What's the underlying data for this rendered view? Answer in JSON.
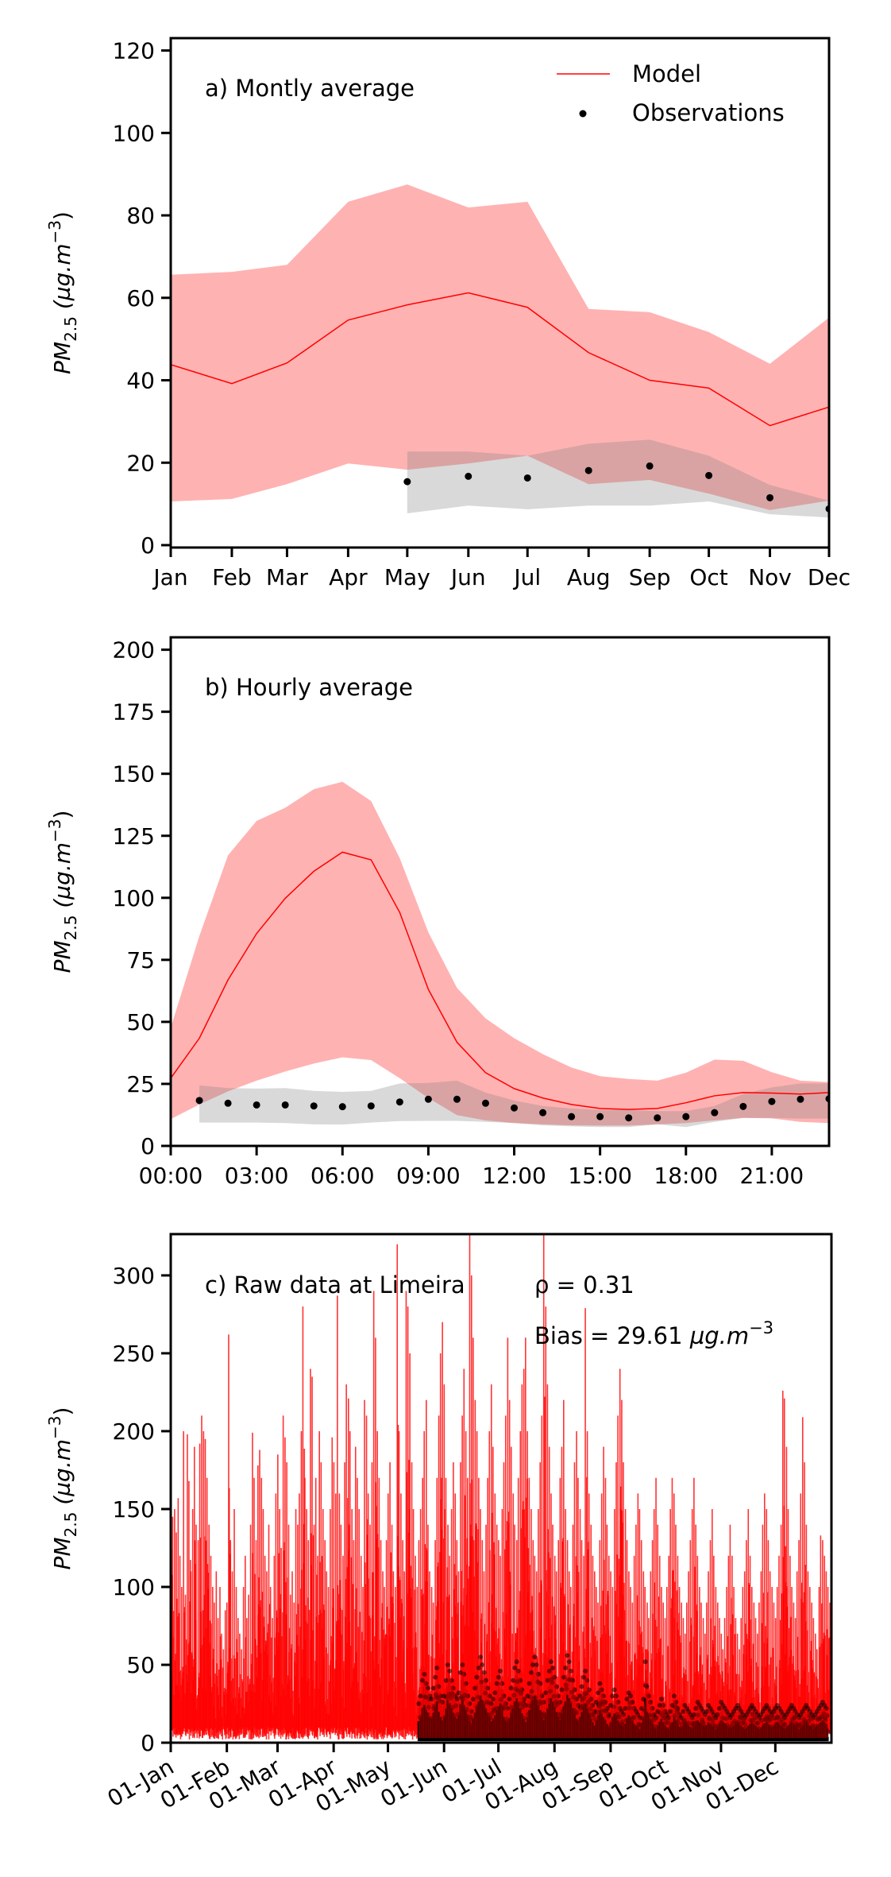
{
  "chart_data": [
    {
      "type": "line",
      "panel": "a",
      "title": "a) Montly average",
      "xlabel": "",
      "ylabel": "PM2.5 (µg.m^-3)",
      "ylabel_parts": {
        "main": "PM",
        "sub": "2.5",
        "unit_open": " (µg.m",
        "sup": "−3",
        "unit_close": ")"
      },
      "ylim": [
        0,
        123
      ],
      "yticks": [
        0,
        20,
        40,
        60,
        80,
        100,
        120
      ],
      "x_unit": "day_of_year",
      "xlim": [
        0,
        334
      ],
      "categories": [
        "Jan",
        "Feb",
        "Mar",
        "Apr",
        "May",
        "Jun",
        "Jul",
        "Aug",
        "Sep",
        "Oct",
        "Nov",
        "Dec"
      ],
      "x": [
        0,
        31,
        59,
        90,
        120,
        151,
        181,
        212,
        243,
        273,
        304,
        334
      ],
      "legend": {
        "placement": "top-right",
        "entries": [
          {
            "label": "Model",
            "marker": "line",
            "color": "#ff0000"
          },
          {
            "label": "Observations",
            "marker": "dot",
            "color": "#000000"
          }
        ]
      },
      "series": [
        {
          "name": "Model",
          "kind": "line",
          "color": "#ff0000",
          "values": [
            43.8,
            39.2,
            44.2,
            54.6,
            58.3,
            61.2,
            57.7,
            46.7,
            40.0,
            38.1,
            29.0,
            33.5
          ]
        },
        {
          "name": "Model range",
          "kind": "band",
          "color": "#ff0000",
          "opacity": 0.3,
          "upper": [
            65.6,
            66.3,
            68.0,
            83.3,
            87.5,
            81.9,
            83.3,
            57.3,
            56.5,
            51.7,
            44.0,
            55.2
          ],
          "lower": [
            10.6,
            11.2,
            14.8,
            19.8,
            18.3,
            19.8,
            21.7,
            14.8,
            15.8,
            12.5,
            8.5,
            10.8
          ]
        },
        {
          "name": "Observations",
          "kind": "scatter",
          "color": "#000000",
          "start_index": 4,
          "values": [
            15.4,
            16.7,
            16.3,
            18.1,
            19.2,
            16.9,
            11.5,
            8.8
          ]
        },
        {
          "name": "Observation range",
          "kind": "band",
          "color": "#808080",
          "opacity": 0.3,
          "start_index": 4,
          "upper": [
            22.7,
            22.7,
            21.7,
            24.6,
            25.6,
            21.7,
            14.6,
            10.8
          ],
          "lower": [
            7.7,
            9.6,
            8.7,
            9.6,
            9.6,
            10.6,
            7.5,
            6.7
          ]
        }
      ]
    },
    {
      "type": "line",
      "panel": "b",
      "title": "b) Hourly average",
      "xlabel": "",
      "ylabel": "PM2.5 (µg.m^-3)",
      "ylabel_parts": {
        "main": "PM",
        "sub": "2.5",
        "unit_open": " (µg.m",
        "sup": "−3",
        "unit_close": ")"
      },
      "ylim": [
        0,
        205
      ],
      "yticks": [
        0,
        25,
        50,
        75,
        100,
        125,
        150,
        175,
        200
      ],
      "xlim": [
        0,
        23
      ],
      "xtick_values": [
        0,
        3,
        6,
        9,
        12,
        15,
        18,
        21
      ],
      "xtick_labels": [
        "00:00",
        "03:00",
        "06:00",
        "09:00",
        "12:00",
        "15:00",
        "18:00",
        "21:00"
      ],
      "x": [
        0,
        1,
        2,
        3,
        4,
        5,
        6,
        7,
        8,
        9,
        10,
        11,
        12,
        13,
        14,
        15,
        16,
        17,
        18,
        19,
        20,
        21,
        22,
        23
      ],
      "series": [
        {
          "name": "Model",
          "kind": "line",
          "color": "#ff0000",
          "values": [
            27.3,
            43.4,
            66.9,
            85.6,
            99.8,
            110.7,
            118.4,
            115.3,
            94.1,
            63.1,
            41.8,
            29.5,
            23.1,
            19.3,
            16.7,
            15.1,
            14.7,
            15.1,
            17.4,
            20.2,
            21.5,
            21.3,
            20.9,
            21.5
          ]
        },
        {
          "name": "Model range",
          "kind": "band",
          "color": "#ff0000",
          "opacity": 0.3,
          "upper": [
            47.7,
            84.6,
            117.1,
            131.0,
            136.3,
            143.8,
            146.8,
            139.0,
            116.0,
            86.1,
            63.7,
            51.4,
            43.4,
            37.0,
            31.6,
            28.1,
            27.0,
            26.3,
            29.5,
            34.8,
            34.3,
            29.7,
            26.3,
            25.7
          ],
          "lower": [
            10.8,
            16.7,
            22.0,
            26.3,
            30.0,
            33.2,
            35.7,
            34.6,
            27.3,
            19.3,
            12.4,
            10.3,
            9.2,
            8.7,
            8.3,
            8.2,
            8.2,
            8.7,
            9.2,
            10.3,
            11.3,
            11.1,
            9.7,
            9.2
          ]
        },
        {
          "name": "Observations",
          "kind": "scatter",
          "color": "#000000",
          "start_index": 1,
          "values": [
            18.3,
            17.2,
            16.5,
            16.5,
            16.1,
            15.8,
            16.1,
            17.7,
            18.8,
            18.8,
            17.2,
            15.3,
            13.4,
            11.8,
            11.8,
            11.3,
            11.3,
            11.8,
            13.4,
            15.9,
            17.9,
            18.8,
            19.0
          ]
        },
        {
          "name": "Observation range",
          "kind": "band",
          "color": "#808080",
          "opacity": 0.3,
          "start_index": 1,
          "upper": [
            24.4,
            23.3,
            23.1,
            23.3,
            22.2,
            21.8,
            22.2,
            25.2,
            25.4,
            26.3,
            21.5,
            18.3,
            16.1,
            15.1,
            14.5,
            14.5,
            14.0,
            14.0,
            16.1,
            20.9,
            23.6,
            25.2,
            25.2
          ],
          "lower": [
            9.4,
            9.4,
            9.4,
            9.2,
            8.7,
            8.6,
            9.4,
            10.0,
            10.1,
            10.1,
            9.7,
            9.2,
            8.3,
            7.9,
            7.6,
            7.6,
            8.7,
            7.6,
            9.7,
            11.3,
            11.3,
            11.0,
            11.0
          ]
        }
      ]
    },
    {
      "type": "line",
      "panel": "c",
      "title": "c) Raw data at Limeira",
      "annotations": [
        "ρ = 0.31",
        "Bias = 29.61 µg.m^-3"
      ],
      "annotation_parts": {
        "rho": "ρ = 0.31",
        "bias_prefix": "Bias = 29.61 ",
        "bias_unit": "µg.m",
        "bias_sup": "−3"
      },
      "xlabel": "",
      "ylabel": "PM2.5 (µg.m^-3)",
      "ylabel_parts": {
        "main": "PM",
        "sub": "2.5",
        "unit_open": " (µg.m",
        "sup": "−3",
        "unit_close": ")"
      },
      "ylim": [
        0,
        326
      ],
      "yticks": [
        0,
        50,
        100,
        150,
        200,
        250,
        300
      ],
      "x_unit": "day_of_year",
      "xlim": [
        0,
        365
      ],
      "xtick_values": [
        0,
        31,
        59,
        90,
        120,
        151,
        181,
        212,
        243,
        273,
        304,
        334
      ],
      "xtick_labels": [
        "01-Jan",
        "01-Feb",
        "01-Mar",
        "01-Apr",
        "01-May",
        "01-Jun",
        "01-Jul",
        "01-Aug",
        "01-Sep",
        "01-Oct",
        "01-Nov",
        "01-Dec"
      ],
      "series": [
        {
          "name": "Model (hourly, shown as daily max/min)",
          "kind": "spikes",
          "color": "#ff0000",
          "daily_max": [
            178,
            145,
            150,
            135,
            157,
            120,
            100,
            200,
            95,
            198,
            168,
            110,
            150,
            190,
            140,
            130,
            192,
            210,
            200,
            195,
            170,
            140,
            120,
            100,
            90,
            110,
            80,
            100,
            70,
            60,
            85,
            90,
            262,
            130,
            110,
            150,
            100,
            80,
            70,
            60,
            100,
            120,
            80,
            95,
            140,
            199,
            170,
            130,
            178,
            188,
            170,
            150,
            120,
            110,
            140,
            100,
            80,
            120,
            160,
            185,
            150,
            125,
            210,
            196,
            180,
            140,
            95,
            110,
            90,
            150,
            140,
            160,
            200,
            280,
            170,
            150,
            130,
            240,
            235,
            140,
            170,
            120,
            200,
            180,
            150,
            130,
            110,
            100,
            150,
            196,
            180,
            160,
            287,
            160,
            140,
            120,
            180,
            230,
            221,
            200,
            150,
            130,
            190,
            170,
            150,
            120,
            100,
            220,
            210,
            160,
            140,
            180,
            290,
            260,
            200,
            170,
            130,
            110,
            100,
            130,
            160,
            180,
            140,
            110,
            100,
            320,
            200,
            160,
            130,
            110,
            290,
            280,
            250,
            180,
            150,
            120,
            100,
            130,
            150,
            170,
            200,
            220,
            140,
            110,
            100,
            90,
            130,
            170,
            210,
            250,
            270,
            230,
            170,
            140,
            120,
            150,
            180,
            160,
            130,
            110,
            180,
            210,
            240,
            200,
            170,
            326,
            300,
            260,
            220,
            200,
            170,
            150,
            130,
            110,
            140,
            170,
            200,
            230,
            190,
            160,
            140,
            130,
            120,
            150,
            180,
            210,
            260,
            220,
            190,
            160,
            140,
            130,
            170,
            200,
            230,
            240,
            260,
            200,
            170,
            150,
            130,
            120,
            110,
            150,
            180,
            210,
            326,
            280,
            230,
            190,
            160,
            140,
            120,
            110,
            130,
            170,
            190,
            220,
            150,
            130,
            110,
            100,
            140,
            180,
            200,
            170,
            150,
            130,
            120,
            279,
            200,
            160,
            140,
            120,
            110,
            100,
            90,
            130,
            160,
            190,
            170,
            140,
            120,
            110,
            100,
            150,
            180,
            210,
            240,
            220,
            180,
            150,
            130,
            110,
            100,
            90,
            120,
            140,
            160,
            150,
            130,
            110,
            100,
            90,
            80,
            110,
            130,
            150,
            170,
            140,
            120,
            100,
            90,
            80,
            100,
            120,
            150,
            170,
            160,
            140,
            120,
            100,
            90,
            80,
            70,
            90,
            110,
            130,
            150,
            170,
            140,
            120,
            100,
            90,
            80,
            70,
            90,
            110,
            130,
            150,
            120,
            100,
            90,
            80,
            70,
            60,
            80,
            100,
            120,
            140,
            120,
            100,
            80,
            70,
            60,
            80,
            100,
            110,
            130,
            150,
            120,
            100,
            90,
            80,
            70,
            90,
            110,
            140,
            160,
            150,
            130,
            110,
            100,
            90,
            80,
            100,
            120,
            140,
            226,
            221,
            190,
            150,
            120,
            100,
            90,
            80,
            110,
            130,
            160,
            209,
            180,
            140,
            110,
            100,
            90,
            80,
            70,
            60,
            100,
            133,
            130,
            120,
            110,
            100,
            90,
            80,
            100,
            97,
            90,
            80,
            70,
            90,
            100,
            110,
            120,
            130,
            90
          ],
          "daily_min": 2
        },
        {
          "name": "Observations (hourly)",
          "kind": "dots",
          "color": "#000000",
          "start_day": 137,
          "daily_max": [
            25,
            30,
            40,
            44,
            38,
            35,
            30,
            28,
            35,
            42,
            48,
            36,
            30,
            26,
            30,
            40,
            50,
            46,
            40,
            35,
            30,
            28,
            32,
            45,
            50,
            44,
            38,
            30,
            25,
            20,
            28,
            35,
            42,
            48,
            55,
            50,
            45,
            40,
            35,
            30,
            25,
            28,
            32,
            38,
            42,
            46,
            38,
            30,
            25,
            22,
            28,
            35,
            40,
            48,
            52,
            46,
            40,
            34,
            28,
            24,
            30,
            38,
            45,
            50,
            55,
            50,
            44,
            38,
            30,
            26,
            32,
            40,
            46,
            52,
            48,
            42,
            36,
            30,
            26,
            34,
            42,
            48,
            56,
            52,
            46,
            40,
            34,
            28,
            24,
            30,
            36,
            42,
            46,
            40,
            34,
            28,
            24,
            20,
            26,
            32,
            38,
            34,
            30,
            26,
            22,
            18,
            24,
            30,
            34,
            30,
            26,
            22,
            20,
            18,
            22,
            28,
            32,
            30,
            26,
            22,
            20,
            18,
            16,
            22,
            28,
            52,
            36,
            30,
            26,
            22,
            18,
            16,
            20,
            24,
            28,
            24,
            20,
            18,
            16,
            20,
            24,
            30,
            26,
            22,
            18,
            16,
            20,
            24,
            22,
            20,
            18,
            16,
            18,
            22,
            26,
            24,
            22,
            20,
            18,
            20,
            24,
            22,
            20,
            18,
            16,
            18,
            22,
            26,
            24,
            22,
            20,
            18,
            16,
            18,
            20,
            22,
            24,
            22,
            20,
            18,
            16,
            18,
            20,
            22,
            24,
            22,
            20,
            18,
            16,
            18,
            20,
            22,
            24,
            22,
            20,
            18,
            20,
            22,
            24,
            22,
            20,
            18,
            16,
            18,
            20,
            22,
            24,
            22,
            20,
            18,
            16,
            18,
            20,
            22,
            24,
            22,
            20,
            18,
            16,
            18,
            20,
            22,
            24,
            26,
            24,
            22
          ],
          "daily_min": 1
        }
      ]
    }
  ]
}
